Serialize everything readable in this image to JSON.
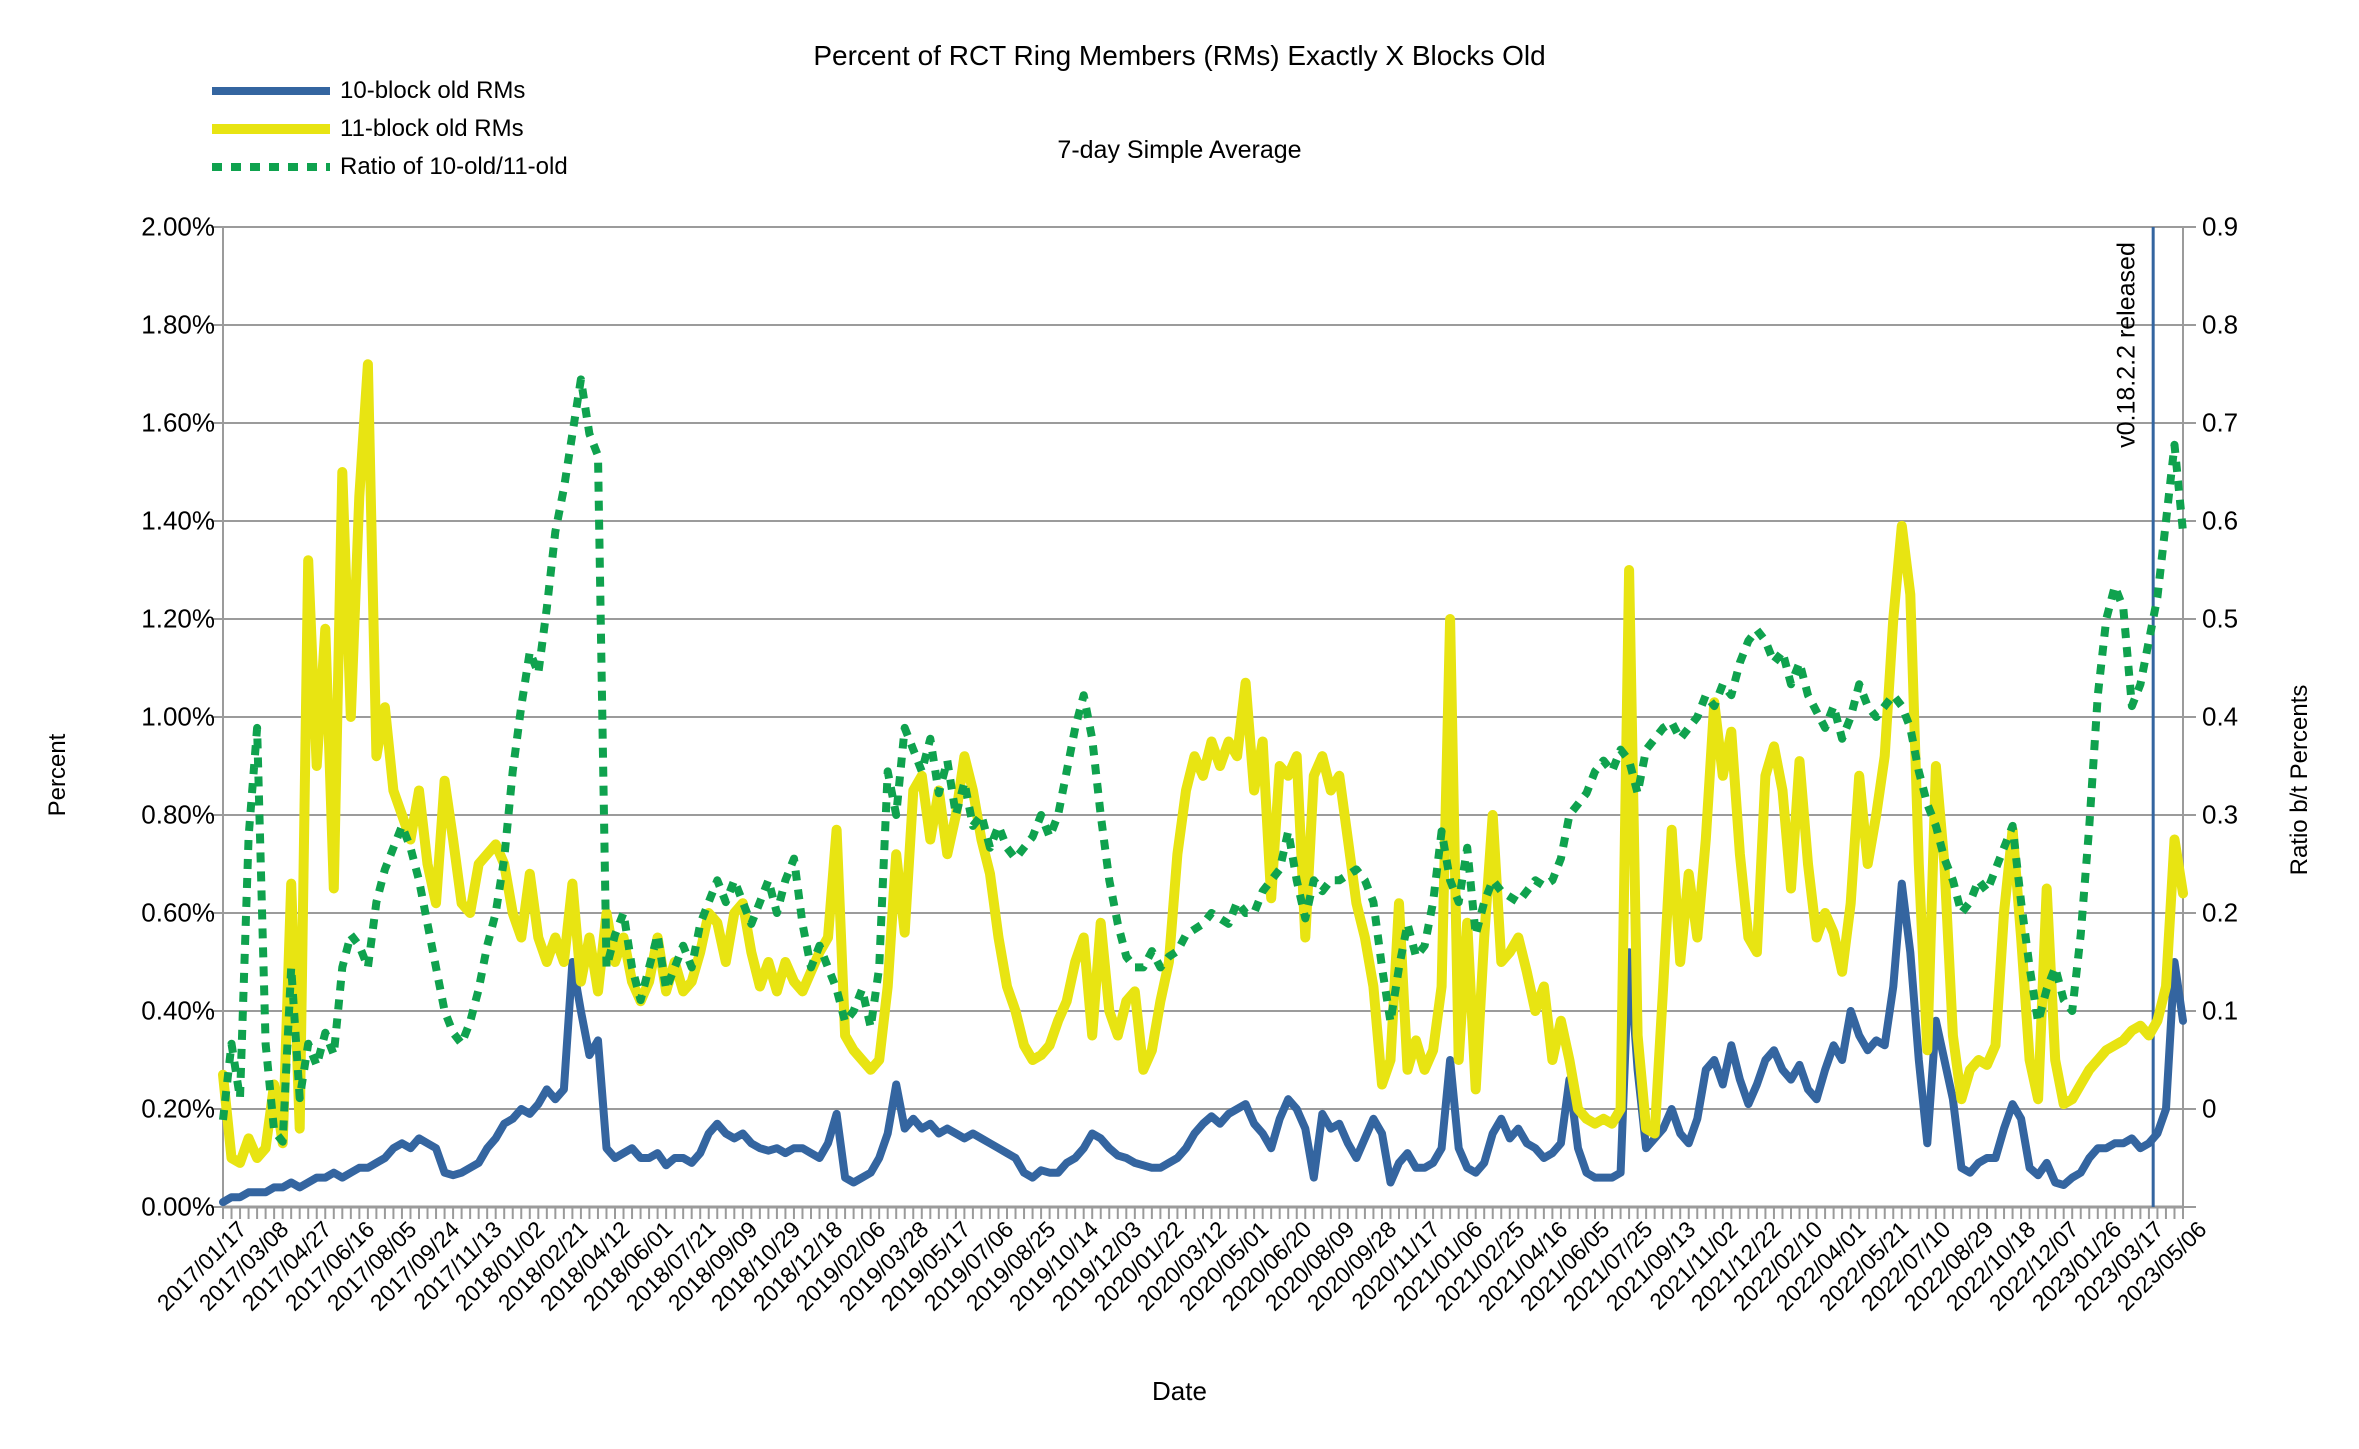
{
  "title": "Percent of RCT Ring Members (RMs) Exactly X Blocks Old",
  "subtitle": "7-day Simple Average",
  "legend": {
    "items": [
      {
        "label": "10-block old RMs",
        "swatch": "blue-solid-line"
      },
      {
        "label": "11-block old RMs",
        "swatch": "yellow-solid-line"
      },
      {
        "label": "Ratio of 10-old/11-old",
        "swatch": "green-dotted-line"
      }
    ]
  },
  "axes": {
    "left": {
      "title": "Percent",
      "labels": [
        "2.00%",
        "1.80%",
        "1.60%",
        "1.40%",
        "1.20%",
        "1.00%",
        "0.80%",
        "0.60%",
        "0.40%",
        "0.20%",
        "0.00%"
      ]
    },
    "right": {
      "title": "Ratio b/t Percents",
      "labels": [
        "0.9",
        "0.8",
        "0.7",
        "0.6",
        "0.5",
        "0.4",
        "0.3",
        "0.2",
        "0.1",
        "0"
      ]
    },
    "x": {
      "title": "Date"
    }
  },
  "annotation": {
    "label": "v0.18.2.2 released"
  },
  "colors": {
    "blue": "#3465a0",
    "yellow": "#e8e412",
    "green": "#0fa24e",
    "gridline": "#9b9b9b",
    "annotation_line": "#3465a0",
    "text": "#000000",
    "background": "#ffffff"
  },
  "chart_data": {
    "type": "line",
    "title": "Percent of RCT Ring Members (RMs) Exactly X Blocks Old",
    "subtitle": "7-day Simple Average",
    "xlabel": "Date",
    "x_start": "2017/01/17",
    "x_end": "2023/05/06",
    "day_step": 10,
    "day_max": 2300,
    "grid": "horizontal-only",
    "legend_position": "top-left",
    "left_axis": {
      "label": "Percent",
      "range": [
        0,
        2.0
      ],
      "tick_step": 0.2,
      "format": "percent"
    },
    "right_axis": {
      "label": "Ratio b/t Percents",
      "range": [
        0,
        0.9
      ],
      "tick_step": 0.1
    },
    "x_tick_labels": [
      "2017/01/17",
      "2017/03/08",
      "2017/04/27",
      "2017/06/16",
      "2017/08/05",
      "2017/09/24",
      "2017/11/13",
      "2018/01/02",
      "2018/02/21",
      "2018/04/12",
      "2018/06/01",
      "2018/07/21",
      "2018/09/09",
      "2018/10/29",
      "2018/12/18",
      "2019/02/06",
      "2019/03/28",
      "2019/05/17",
      "2019/07/06",
      "2019/08/25",
      "2019/10/14",
      "2019/12/03",
      "2020/01/22",
      "2020/03/12",
      "2020/05/01",
      "2020/06/20",
      "2020/08/09",
      "2020/09/28",
      "2020/11/17",
      "2021/01/06",
      "2021/02/25",
      "2021/04/16",
      "2021/06/05",
      "2021/07/25",
      "2021/09/13",
      "2021/11/02",
      "2021/12/22",
      "2022/02/10",
      "2022/04/01",
      "2022/05/21",
      "2022/07/10",
      "2022/08/29",
      "2022/10/18",
      "2022/12/07",
      "2023/01/26",
      "2023/03/17",
      "2023/05/06"
    ],
    "annotations": [
      {
        "type": "vline",
        "label": "v0.18.2.2 released",
        "x_day": 2265
      }
    ],
    "series": [
      {
        "name": "10-block old RMs",
        "axis": "left",
        "unit": "%",
        "color": "#3465a0",
        "style": "solid",
        "values": [
          0.01,
          0.02,
          0.02,
          0.03,
          0.03,
          0.03,
          0.04,
          0.04,
          0.05,
          0.04,
          0.05,
          0.06,
          0.06,
          0.07,
          0.06,
          0.07,
          0.08,
          0.08,
          0.09,
          0.1,
          0.12,
          0.13,
          0.12,
          0.14,
          0.13,
          0.12,
          0.07,
          0.065,
          0.07,
          0.08,
          0.09,
          0.12,
          0.14,
          0.17,
          0.18,
          0.2,
          0.19,
          0.21,
          0.24,
          0.22,
          0.24,
          0.5,
          0.4,
          0.31,
          0.34,
          0.12,
          0.1,
          0.11,
          0.12,
          0.1,
          0.1,
          0.11,
          0.085,
          0.1,
          0.1,
          0.09,
          0.11,
          0.15,
          0.17,
          0.15,
          0.14,
          0.15,
          0.13,
          0.12,
          0.115,
          0.12,
          0.11,
          0.12,
          0.12,
          0.11,
          0.1,
          0.13,
          0.19,
          0.06,
          0.05,
          0.06,
          0.07,
          0.1,
          0.15,
          0.25,
          0.16,
          0.18,
          0.16,
          0.17,
          0.15,
          0.16,
          0.15,
          0.14,
          0.15,
          0.14,
          0.13,
          0.12,
          0.11,
          0.1,
          0.07,
          0.06,
          0.075,
          0.07,
          0.07,
          0.09,
          0.1,
          0.12,
          0.15,
          0.14,
          0.12,
          0.105,
          0.1,
          0.09,
          0.085,
          0.08,
          0.08,
          0.09,
          0.1,
          0.12,
          0.15,
          0.17,
          0.185,
          0.17,
          0.19,
          0.2,
          0.21,
          0.17,
          0.15,
          0.12,
          0.18,
          0.22,
          0.2,
          0.16,
          0.06,
          0.19,
          0.16,
          0.17,
          0.13,
          0.1,
          0.14,
          0.18,
          0.15,
          0.05,
          0.09,
          0.11,
          0.08,
          0.08,
          0.09,
          0.12,
          0.3,
          0.12,
          0.08,
          0.07,
          0.09,
          0.15,
          0.18,
          0.14,
          0.16,
          0.13,
          0.12,
          0.1,
          0.11,
          0.13,
          0.26,
          0.12,
          0.07,
          0.06,
          0.06,
          0.06,
          0.07,
          0.52,
          0.28,
          0.12,
          0.14,
          0.16,
          0.2,
          0.15,
          0.13,
          0.18,
          0.28,
          0.3,
          0.25,
          0.33,
          0.26,
          0.21,
          0.25,
          0.3,
          0.32,
          0.28,
          0.26,
          0.29,
          0.24,
          0.22,
          0.28,
          0.33,
          0.3,
          0.4,
          0.35,
          0.32,
          0.34,
          0.33,
          0.45,
          0.66,
          0.52,
          0.3,
          0.13,
          0.38,
          0.3,
          0.22,
          0.08,
          0.07,
          0.09,
          0.1,
          0.1,
          0.16,
          0.21,
          0.18,
          0.08,
          0.065,
          0.09,
          0.05,
          0.045,
          0.06,
          0.07,
          0.1,
          0.12,
          0.12,
          0.13,
          0.13,
          0.14,
          0.12,
          0.13,
          0.15,
          0.2,
          0.5,
          0.38
        ]
      },
      {
        "name": "11-block old RMs",
        "axis": "left",
        "unit": "%",
        "color": "#e8e412",
        "style": "solid",
        "values": [
          0.27,
          0.1,
          0.09,
          0.14,
          0.1,
          0.12,
          0.25,
          0.13,
          0.66,
          0.16,
          1.32,
          0.9,
          1.18,
          0.65,
          1.5,
          1.0,
          1.45,
          1.72,
          0.92,
          1.02,
          0.85,
          0.8,
          0.75,
          0.85,
          0.7,
          0.62,
          0.87,
          0.75,
          0.62,
          0.6,
          0.7,
          0.72,
          0.74,
          0.7,
          0.6,
          0.55,
          0.68,
          0.55,
          0.5,
          0.55,
          0.5,
          0.66,
          0.46,
          0.55,
          0.44,
          0.6,
          0.5,
          0.55,
          0.46,
          0.42,
          0.46,
          0.55,
          0.44,
          0.5,
          0.44,
          0.46,
          0.52,
          0.6,
          0.58,
          0.5,
          0.6,
          0.62,
          0.52,
          0.45,
          0.5,
          0.44,
          0.5,
          0.46,
          0.44,
          0.48,
          0.52,
          0.55,
          0.77,
          0.35,
          0.32,
          0.3,
          0.28,
          0.3,
          0.45,
          0.72,
          0.56,
          0.85,
          0.88,
          0.75,
          0.85,
          0.72,
          0.8,
          0.92,
          0.85,
          0.75,
          0.68,
          0.55,
          0.45,
          0.4,
          0.33,
          0.3,
          0.31,
          0.33,
          0.38,
          0.42,
          0.5,
          0.55,
          0.35,
          0.58,
          0.4,
          0.35,
          0.42,
          0.44,
          0.28,
          0.32,
          0.42,
          0.5,
          0.72,
          0.85,
          0.92,
          0.88,
          0.95,
          0.9,
          0.95,
          0.92,
          1.07,
          0.85,
          0.95,
          0.63,
          0.9,
          0.88,
          0.92,
          0.55,
          0.88,
          0.92,
          0.85,
          0.88,
          0.75,
          0.62,
          0.55,
          0.45,
          0.25,
          0.3,
          0.62,
          0.28,
          0.34,
          0.28,
          0.32,
          0.45,
          1.2,
          0.3,
          0.58,
          0.24,
          0.55,
          0.8,
          0.5,
          0.52,
          0.55,
          0.48,
          0.4,
          0.45,
          0.3,
          0.38,
          0.3,
          0.2,
          0.18,
          0.17,
          0.18,
          0.17,
          0.2,
          1.3,
          0.35,
          0.16,
          0.15,
          0.45,
          0.77,
          0.5,
          0.68,
          0.55,
          0.75,
          1.03,
          0.88,
          0.97,
          0.72,
          0.55,
          0.52,
          0.88,
          0.94,
          0.85,
          0.65,
          0.91,
          0.7,
          0.55,
          0.6,
          0.56,
          0.48,
          0.62,
          0.88,
          0.7,
          0.8,
          0.92,
          1.2,
          1.39,
          1.25,
          0.7,
          0.32,
          0.9,
          0.7,
          0.35,
          0.22,
          0.28,
          0.3,
          0.29,
          0.33,
          0.6,
          0.77,
          0.55,
          0.3,
          0.22,
          0.65,
          0.3,
          0.21,
          0.22,
          0.25,
          0.28,
          0.3,
          0.32,
          0.33,
          0.34,
          0.36,
          0.37,
          0.35,
          0.38,
          0.45,
          0.75,
          0.64
        ]
      },
      {
        "name": "Ratio of 10-old/11-old",
        "axis": "right",
        "unit": "ratio",
        "color": "#0fa24e",
        "style": "dotted",
        "values": [
          0.08,
          0.15,
          0.1,
          0.34,
          0.44,
          0.15,
          0.07,
          0.06,
          0.22,
          0.1,
          0.15,
          0.13,
          0.16,
          0.14,
          0.22,
          0.25,
          0.24,
          0.22,
          0.28,
          0.31,
          0.33,
          0.35,
          0.33,
          0.3,
          0.26,
          0.22,
          0.18,
          0.16,
          0.15,
          0.17,
          0.2,
          0.24,
          0.27,
          0.32,
          0.4,
          0.46,
          0.51,
          0.49,
          0.55,
          0.62,
          0.66,
          0.71,
          0.76,
          0.71,
          0.69,
          0.22,
          0.25,
          0.27,
          0.22,
          0.19,
          0.22,
          0.25,
          0.2,
          0.22,
          0.24,
          0.22,
          0.26,
          0.28,
          0.3,
          0.28,
          0.3,
          0.28,
          0.26,
          0.28,
          0.3,
          0.27,
          0.3,
          0.32,
          0.26,
          0.22,
          0.24,
          0.22,
          0.2,
          0.17,
          0.18,
          0.2,
          0.165,
          0.22,
          0.4,
          0.36,
          0.44,
          0.42,
          0.4,
          0.43,
          0.38,
          0.41,
          0.36,
          0.39,
          0.35,
          0.36,
          0.33,
          0.35,
          0.33,
          0.32,
          0.33,
          0.34,
          0.36,
          0.34,
          0.36,
          0.4,
          0.44,
          0.47,
          0.43,
          0.36,
          0.3,
          0.26,
          0.23,
          0.22,
          0.22,
          0.235,
          0.22,
          0.23,
          0.235,
          0.25,
          0.255,
          0.26,
          0.27,
          0.265,
          0.26,
          0.28,
          0.27,
          0.27,
          0.29,
          0.3,
          0.31,
          0.345,
          0.3,
          0.265,
          0.3,
          0.29,
          0.3,
          0.3,
          0.305,
          0.31,
          0.3,
          0.28,
          0.22,
          0.17,
          0.22,
          0.26,
          0.23,
          0.24,
          0.28,
          0.345,
          0.3,
          0.28,
          0.33,
          0.25,
          0.28,
          0.3,
          0.29,
          0.285,
          0.28,
          0.29,
          0.3,
          0.295,
          0.3,
          0.32,
          0.36,
          0.37,
          0.38,
          0.4,
          0.41,
          0.4,
          0.42,
          0.41,
          0.38,
          0.42,
          0.43,
          0.44,
          0.445,
          0.43,
          0.44,
          0.45,
          0.47,
          0.46,
          0.48,
          0.47,
          0.5,
          0.52,
          0.53,
          0.52,
          0.5,
          0.51,
          0.48,
          0.5,
          0.47,
          0.455,
          0.44,
          0.46,
          0.43,
          0.45,
          0.48,
          0.46,
          0.45,
          0.46,
          0.47,
          0.46,
          0.44,
          0.4,
          0.37,
          0.35,
          0.32,
          0.3,
          0.27,
          0.28,
          0.3,
          0.29,
          0.31,
          0.33,
          0.35,
          0.28,
          0.22,
          0.17,
          0.2,
          0.22,
          0.19,
          0.18,
          0.25,
          0.35,
          0.47,
          0.54,
          0.57,
          0.55,
          0.46,
          0.48,
          0.52,
          0.56,
          0.63,
          0.7,
          0.62
        ]
      }
    ]
  }
}
